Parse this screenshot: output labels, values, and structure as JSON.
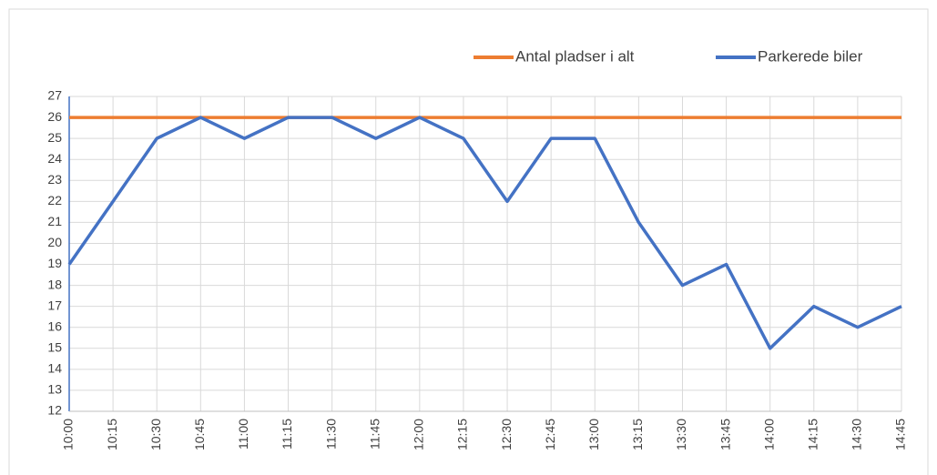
{
  "chart_data": {
    "type": "line",
    "categories": [
      "10:00",
      "10:15",
      "10:30",
      "10:45",
      "11:00",
      "11:15",
      "11:30",
      "11:45",
      "12:00",
      "12:15",
      "12:30",
      "12:45",
      "13:00",
      "13:15",
      "13:30",
      "13:45",
      "14:00",
      "14:15",
      "14:30",
      "14:45"
    ],
    "series": [
      {
        "name": "Antal pladser i alt",
        "color": "#ed7d31",
        "values": [
          26,
          26,
          26,
          26,
          26,
          26,
          26,
          26,
          26,
          26,
          26,
          26,
          26,
          26,
          26,
          26,
          26,
          26,
          26,
          26
        ]
      },
      {
        "name": "Parkerede biler",
        "color": "#4472c4",
        "values": [
          19,
          22,
          25,
          26,
          25,
          26,
          26,
          25,
          26,
          25,
          22,
          25,
          25,
          21,
          18,
          19,
          15,
          17,
          16,
          17
        ]
      }
    ],
    "ylim": [
      12,
      27
    ],
    "yticks": [
      12,
      13,
      14,
      15,
      16,
      17,
      18,
      19,
      20,
      21,
      22,
      23,
      24,
      25,
      26,
      27
    ],
    "grid": true,
    "legend": "top-right"
  }
}
